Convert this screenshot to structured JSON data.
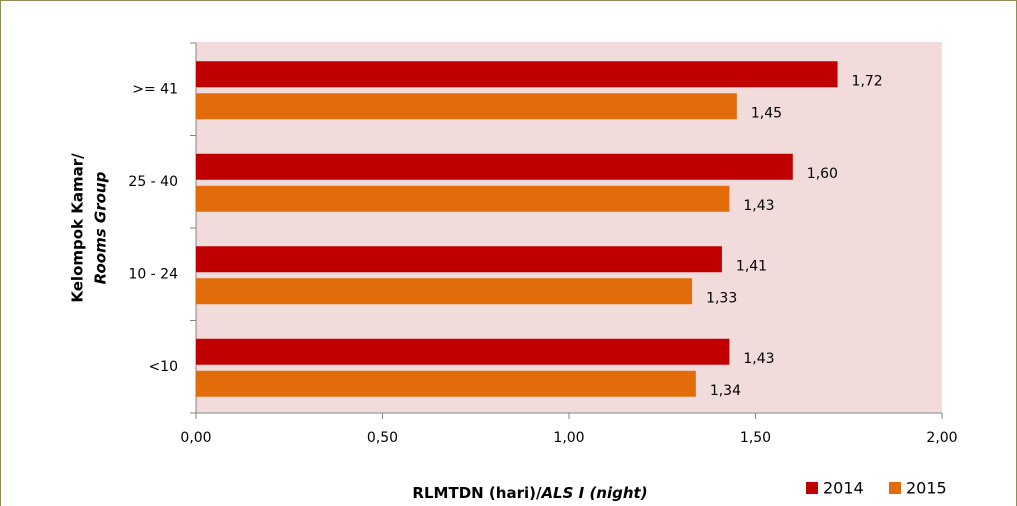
{
  "chart_data": {
    "type": "bar",
    "orientation": "horizontal",
    "x_label": [
      "RLMTDN (hari)/",
      "ALS I (night)"
    ],
    "y_label": [
      "Kelompok Kamar/",
      "Rooms Group"
    ],
    "categories": [
      ">= 41",
      "25 - 40",
      "10 - 24",
      "<10"
    ],
    "series": [
      {
        "name": "2014",
        "color": "#c00000",
        "values": [
          1.72,
          1.6,
          1.41,
          1.43
        ],
        "value_labels": [
          "1,72",
          "1,60",
          "1,41",
          "1,43"
        ]
      },
      {
        "name": "2015",
        "color": "#e36c0a",
        "values": [
          1.45,
          1.43,
          1.33,
          1.34
        ],
        "value_labels": [
          "1,45",
          "1,43",
          "1,33",
          "1,34"
        ]
      }
    ],
    "xlim": [
      0,
      2
    ],
    "xticks": [
      {
        "value": 0,
        "label": "0,00"
      },
      {
        "value": 0.5,
        "label": "0,50"
      },
      {
        "value": 1,
        "label": "1,00"
      },
      {
        "value": 1.5,
        "label": "1,50"
      },
      {
        "value": 2,
        "label": "2,00"
      }
    ],
    "legend": "bottom-right"
  }
}
